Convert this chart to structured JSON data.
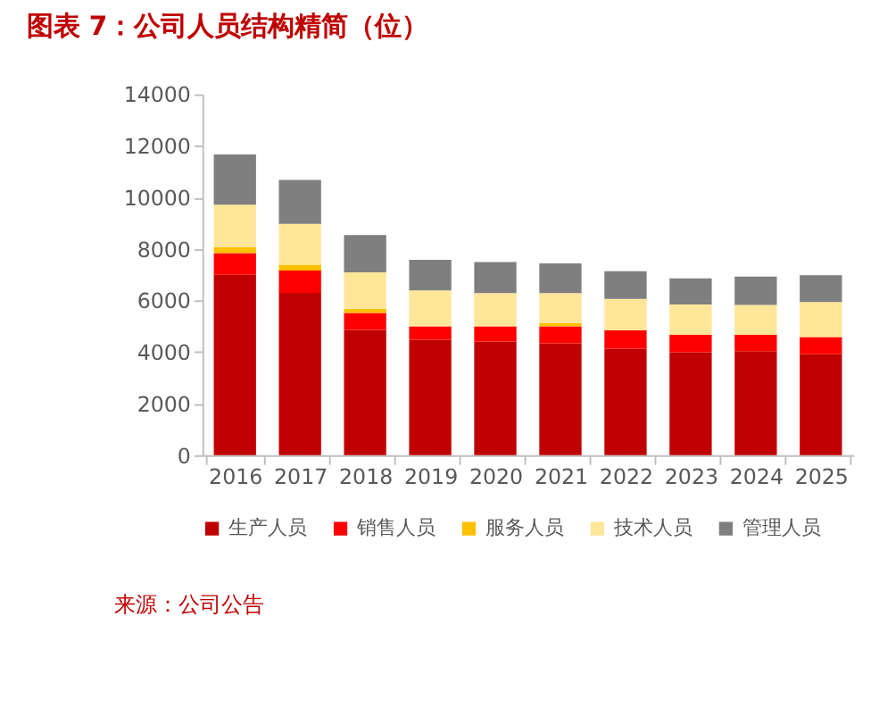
{
  "chart_data": {
    "type": "bar",
    "title": "图表 7：公司人员结构精简（位）",
    "stacked": true,
    "categories": [
      "2016",
      "2017",
      "2018",
      "2019",
      "2020",
      "2021",
      "2022",
      "2023",
      "2024",
      "2025"
    ],
    "series": [
      {
        "name": "生产人员",
        "color": "#c00000",
        "values": [
          7000,
          6300,
          4860,
          4480,
          4410,
          4340,
          4130,
          3990,
          4040,
          3920
        ]
      },
      {
        "name": "销售人员",
        "color": "#ff0000",
        "values": [
          840,
          860,
          660,
          520,
          590,
          660,
          710,
          680,
          630,
          660
        ]
      },
      {
        "name": "服务人员",
        "color": "#ffc000",
        "values": [
          230,
          230,
          160,
          null,
          null,
          120,
          null,
          null,
          null,
          null
        ]
      },
      {
        "name": "技术人员",
        "color": "#ffe699",
        "values": [
          1650,
          1580,
          1410,
          1390,
          1290,
          1170,
          1220,
          1180,
          1160,
          1360
        ]
      },
      {
        "name": "管理人员",
        "color": "#7f7f7f",
        "values": [
          1950,
          1710,
          1450,
          1190,
          1200,
          1150,
          1080,
          1010,
          1100,
          1040
        ]
      }
    ],
    "ylim": [
      0,
      14000
    ],
    "yticks": [
      0,
      2000,
      4000,
      6000,
      8000,
      10000,
      12000,
      14000
    ],
    "grid": false,
    "legend": "bottom",
    "annotations": [
      "来源：公司公告"
    ]
  }
}
